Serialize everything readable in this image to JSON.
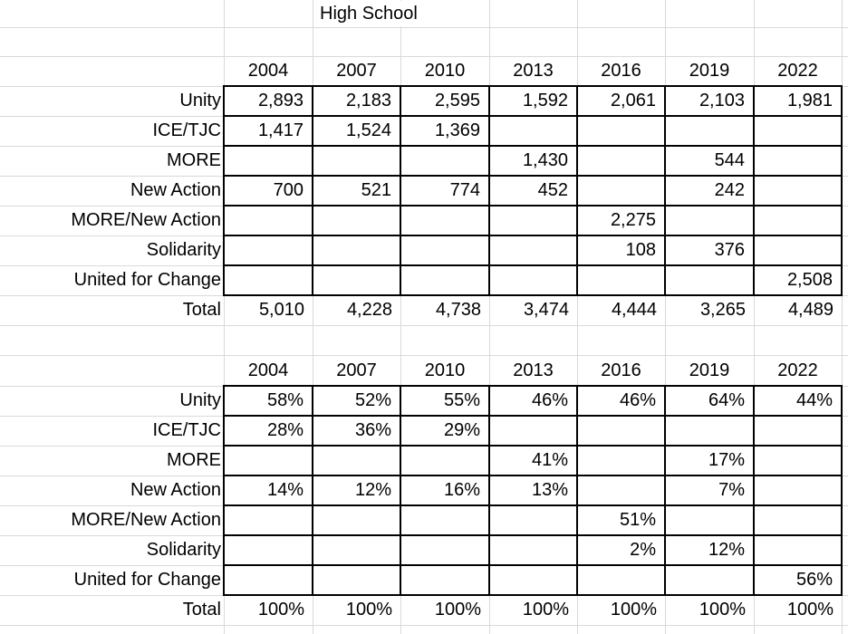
{
  "sheet": {
    "title": "High School",
    "years": [
      "2004",
      "2007",
      "2010",
      "2013",
      "2016",
      "2019",
      "2022"
    ]
  },
  "votes_table": {
    "rows": [
      {
        "label": "Unity",
        "values": [
          "2,893",
          "2,183",
          "2,595",
          "1,592",
          "2,061",
          "2,103",
          "1,981"
        ]
      },
      {
        "label": "ICE/TJC",
        "values": [
          "1,417",
          "1,524",
          "1,369",
          "",
          "",
          "",
          ""
        ]
      },
      {
        "label": "MORE",
        "values": [
          "",
          "",
          "",
          "1,430",
          "",
          "544",
          ""
        ]
      },
      {
        "label": "New Action",
        "values": [
          "700",
          "521",
          "774",
          "452",
          "",
          "242",
          ""
        ]
      },
      {
        "label": "MORE/New Action",
        "values": [
          "",
          "",
          "",
          "",
          "2,275",
          "",
          ""
        ]
      },
      {
        "label": "Solidarity",
        "values": [
          "",
          "",
          "",
          "",
          "108",
          "376",
          ""
        ]
      },
      {
        "label": "United for Change",
        "values": [
          "",
          "",
          "",
          "",
          "",
          "",
          "2,508"
        ]
      },
      {
        "label": "Total",
        "values": [
          "5,010",
          "4,228",
          "4,738",
          "3,474",
          "4,444",
          "3,265",
          "4,489"
        ]
      }
    ]
  },
  "percent_table": {
    "rows": [
      {
        "label": "Unity",
        "values": [
          "58%",
          "52%",
          "55%",
          "46%",
          "46%",
          "64%",
          "44%"
        ]
      },
      {
        "label": "ICE/TJC",
        "values": [
          "28%",
          "36%",
          "29%",
          "",
          "",
          "",
          ""
        ]
      },
      {
        "label": "MORE",
        "values": [
          "",
          "",
          "",
          "41%",
          "",
          "17%",
          ""
        ]
      },
      {
        "label": "New Action",
        "values": [
          "14%",
          "12%",
          "16%",
          "13%",
          "",
          "7%",
          ""
        ]
      },
      {
        "label": "MORE/New Action",
        "values": [
          "",
          "",
          "",
          "",
          "51%",
          "",
          ""
        ]
      },
      {
        "label": "Solidarity",
        "values": [
          "",
          "",
          "",
          "",
          "2%",
          "12%",
          ""
        ]
      },
      {
        "label": "United for Change",
        "values": [
          "",
          "",
          "",
          "",
          "",
          "",
          "56%"
        ]
      },
      {
        "label": "Total",
        "values": [
          "100%",
          "100%",
          "100%",
          "100%",
          "100%",
          "100%",
          "100%"
        ]
      }
    ]
  },
  "colors": {
    "grid_line": "#d9d9d9",
    "cell_border": "#000000",
    "flag_green": "#2e7d32",
    "background": "#ffffff",
    "text": "#000000"
  }
}
